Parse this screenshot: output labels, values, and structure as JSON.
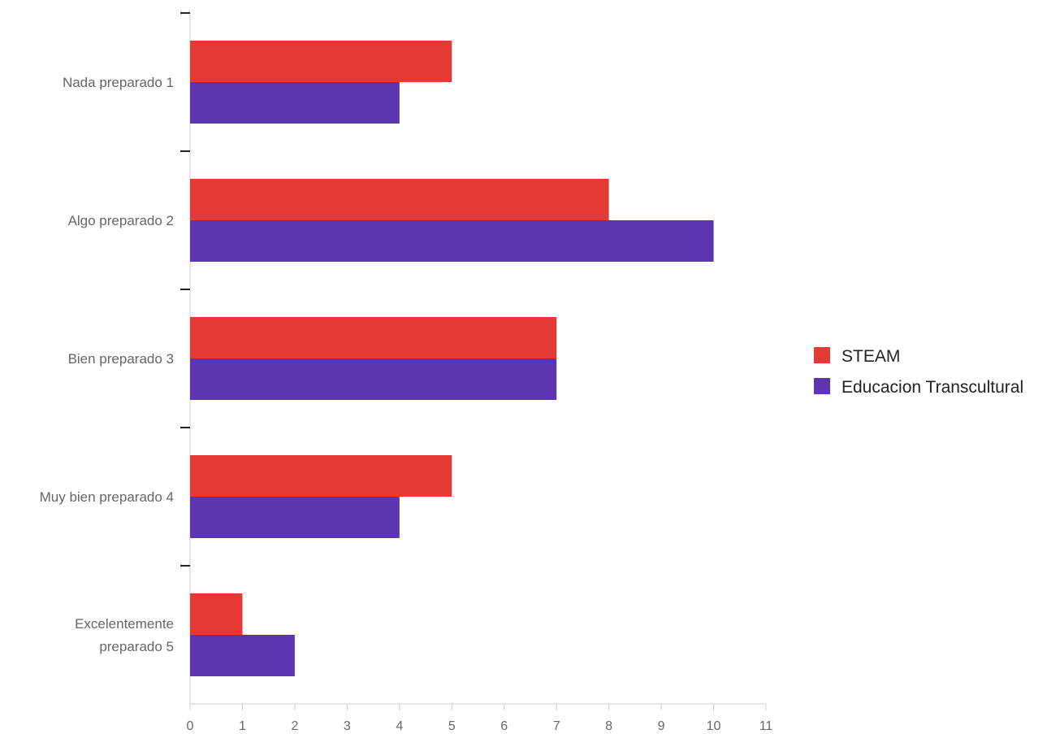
{
  "chart_data": {
    "type": "bar",
    "orientation": "horizontal",
    "categories": [
      [
        "Nada preparado 1"
      ],
      [
        "Algo preparado 2"
      ],
      [
        "Bien preparado 3"
      ],
      [
        "Muy bien preparado 4"
      ],
      [
        "Excelentemente",
        "preparado 5"
      ]
    ],
    "series": [
      {
        "name": "STEAM",
        "color": "#e53935",
        "values": [
          5,
          8,
          7,
          5,
          1
        ]
      },
      {
        "name": "Educacion Transcultural",
        "color": "#5e35b1",
        "values": [
          4,
          10,
          7,
          4,
          2
        ]
      }
    ],
    "xlim": [
      0,
      11
    ],
    "xticks": [
      "0",
      "1",
      "2",
      "3",
      "4",
      "5",
      "6",
      "7",
      "8",
      "9",
      "10",
      "11"
    ],
    "grid": false,
    "legend_position": "right"
  }
}
